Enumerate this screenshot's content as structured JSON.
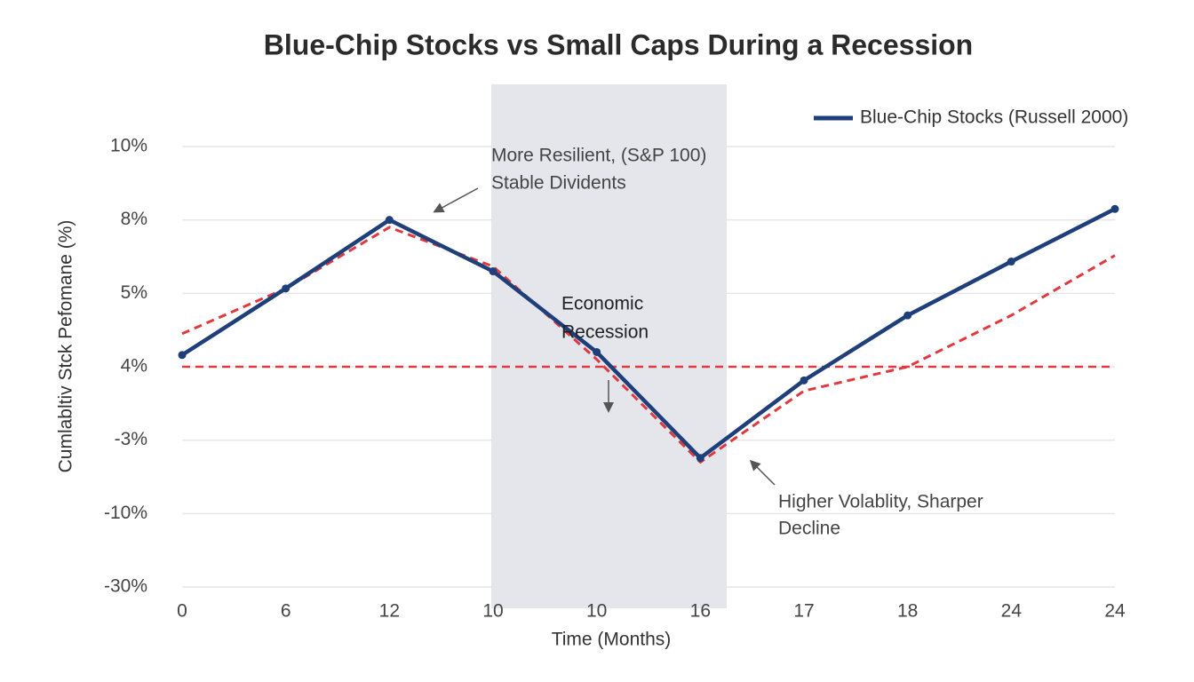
{
  "chart_data": {
    "type": "line",
    "title": "Blue-Chip Stocks vs Small Caps During a Recession",
    "x_label": "Time (Months)",
    "y_label": "Cumlabltiv Stck Pefomane (%)",
    "categories": [
      "0",
      "6",
      "12",
      "10",
      "10",
      "16",
      "17",
      "18",
      "24",
      "24"
    ],
    "series": [
      {
        "name": "Blue-Chip Stocks (Russell 2000)",
        "color": "#1f3f7a",
        "values": [
          4.16,
          5.2,
          8,
          5.9,
          4.2,
          -4.7,
          2.7,
          4.7,
          6.3,
          8.3
        ]
      },
      {
        "color": "#e0393e",
        "values": [
          4.45,
          5.2,
          7.7,
          6.1,
          4.1,
          -5.1,
          1.7,
          4,
          4.7,
          6.55
        ]
      }
    ],
    "reference_line": {
      "value": 4,
      "color": "#e0393e"
    },
    "ylim": [
      -30,
      10
    ],
    "yticks": [
      {
        "value": -30,
        "label": "-30%"
      },
      {
        "value": -10,
        "label": "-10%"
      },
      {
        "value": -3,
        "label": "-3%"
      },
      {
        "value": 4,
        "label": "4%"
      },
      {
        "value": 5,
        "label": "5%"
      },
      {
        "value": 8,
        "label": "8%"
      },
      {
        "value": 10,
        "label": "10%"
      }
    ],
    "grid": true,
    "legend": "top-right",
    "annotations": [
      "More Resilient, (S&P 100)",
      "Stable Dividents",
      "Economic",
      "Recession",
      "Higher Volablity, Sharper",
      "Decline"
    ]
  }
}
